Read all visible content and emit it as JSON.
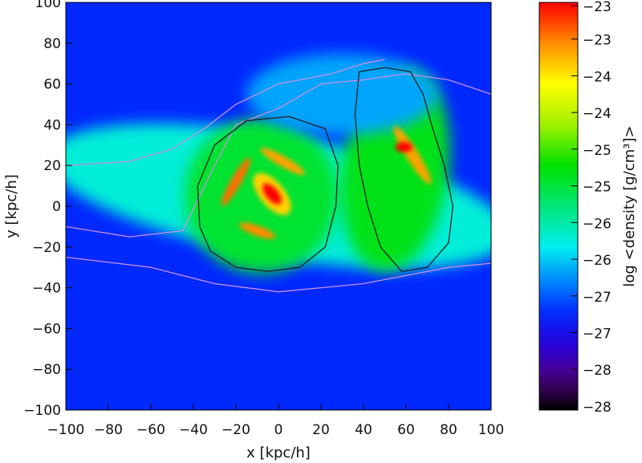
{
  "chart_data": {
    "type": "heatmap",
    "title": "",
    "xlabel": "x [kpc/h]",
    "ylabel": "y [kpc/h]",
    "xlim": [
      -100,
      100
    ],
    "ylim": [
      -100,
      100
    ],
    "xticks": [
      "-100",
      "-80",
      "-60",
      "-40",
      "-20",
      "0",
      "20",
      "40",
      "60",
      "80",
      "100"
    ],
    "xtick_values": [
      -100,
      -80,
      -60,
      -40,
      -20,
      0,
      20,
      40,
      60,
      80,
      100
    ],
    "yticks": [
      "100",
      "80",
      "60",
      "40",
      "20",
      "0",
      "-20",
      "-40",
      "-60",
      "-80",
      "-100"
    ],
    "ytick_values": [
      100,
      80,
      60,
      40,
      20,
      0,
      -20,
      -40,
      -60,
      -80,
      -100
    ],
    "colorbar": {
      "label": "log <density [g/cm³]>",
      "range": [
        -28,
        -23
      ],
      "tick_labels": [
        "-23",
        "-23",
        "-24",
        "-24",
        "-25",
        "-25",
        "-26",
        "-26",
        "-27",
        "-27",
        "-28",
        "-28"
      ],
      "tick_values": [
        -23.0,
        -23.45,
        -23.9,
        -24.35,
        -24.8,
        -25.25,
        -25.7,
        -26.15,
        -26.6,
        -27.05,
        -27.5,
        -27.95
      ],
      "colormap": "rainbow (black-purple-blue-cyan-green-yellow-red)"
    },
    "background_log_density": -26.8,
    "features": [
      {
        "name": "gas band",
        "x": 0,
        "y": 5,
        "rx": 110,
        "ry": 30,
        "angle": -10,
        "value": -25.9
      },
      {
        "name": "left shell",
        "x": -8,
        "y": 5,
        "rx": 36,
        "ry": 38,
        "angle": 0,
        "value": -25.2
      },
      {
        "name": "right shell",
        "x": 55,
        "y": 18,
        "rx": 25,
        "ry": 50,
        "angle": -8,
        "value": -25.1
      },
      {
        "name": "upper halo",
        "x": 30,
        "y": 55,
        "rx": 45,
        "ry": 20,
        "angle": 0,
        "value": -26.3
      },
      {
        "name": "left galaxy disk",
        "x": -3,
        "y": 6,
        "rx": 12,
        "ry": 6,
        "angle": -50,
        "value": -23.8
      },
      {
        "name": "left galaxy core",
        "x": -3,
        "y": 6,
        "rx": 6,
        "ry": 3,
        "angle": -50,
        "value": -23.0
      },
      {
        "name": "left arm 1",
        "x": -20,
        "y": 12,
        "rx": 13,
        "ry": 2.5,
        "angle": 60,
        "value": -23.4
      },
      {
        "name": "left arm 2",
        "x": 2,
        "y": 22,
        "rx": 12,
        "ry": 2.5,
        "angle": -30,
        "value": -23.6
      },
      {
        "name": "left arm 3",
        "x": -10,
        "y": -12,
        "rx": 9,
        "ry": 2.5,
        "angle": -20,
        "value": -23.5
      },
      {
        "name": "right galaxy arm",
        "x": 63,
        "y": 25,
        "rx": 16,
        "ry": 3,
        "angle": -58,
        "value": -23.6
      },
      {
        "name": "right galaxy core",
        "x": 59,
        "y": 29,
        "rx": 4,
        "ry": 2.5,
        "angle": 0,
        "value": -23.0
      }
    ],
    "contours": [
      {
        "color": "#c890e0",
        "points": [
          [
            -100,
            -10
          ],
          [
            -70,
            -15
          ],
          [
            -45,
            -12
          ],
          [
            -30,
            20
          ],
          [
            -20,
            40
          ],
          [
            0,
            48
          ],
          [
            20,
            60
          ],
          [
            40,
            62
          ],
          [
            60,
            65
          ],
          [
            80,
            62
          ],
          [
            100,
            55
          ]
        ]
      },
      {
        "color": "#c890e0",
        "points": [
          [
            -100,
            -25
          ],
          [
            -60,
            -30
          ],
          [
            -30,
            -38
          ],
          [
            0,
            -42
          ],
          [
            20,
            -40
          ],
          [
            40,
            -38
          ],
          [
            60,
            -34
          ],
          [
            80,
            -30
          ],
          [
            100,
            -28
          ]
        ]
      },
      {
        "color": "#c890e0",
        "points": [
          [
            -100,
            20
          ],
          [
            -70,
            22
          ],
          [
            -50,
            28
          ],
          [
            -35,
            38
          ],
          [
            -20,
            50
          ],
          [
            0,
            60
          ],
          [
            25,
            65
          ],
          [
            40,
            70
          ],
          [
            50,
            72
          ]
        ]
      },
      {
        "color": "#222222",
        "points": [
          [
            -37,
            -10
          ],
          [
            -38,
            10
          ],
          [
            -30,
            30
          ],
          [
            -15,
            42
          ],
          [
            5,
            44
          ],
          [
            22,
            38
          ],
          [
            28,
            20
          ],
          [
            27,
            0
          ],
          [
            22,
            -20
          ],
          [
            10,
            -30
          ],
          [
            -5,
            -32
          ],
          [
            -20,
            -30
          ],
          [
            -32,
            -22
          ],
          [
            -37,
            -10
          ]
        ]
      },
      {
        "color": "#222222",
        "points": [
          [
            38,
            66
          ],
          [
            50,
            68
          ],
          [
            62,
            66
          ],
          [
            68,
            55
          ],
          [
            72,
            40
          ],
          [
            78,
            20
          ],
          [
            82,
            0
          ],
          [
            80,
            -18
          ],
          [
            70,
            -30
          ],
          [
            58,
            -32
          ],
          [
            48,
            -20
          ],
          [
            42,
            0
          ],
          [
            38,
            20
          ],
          [
            36,
            45
          ],
          [
            38,
            66
          ]
        ]
      }
    ]
  }
}
